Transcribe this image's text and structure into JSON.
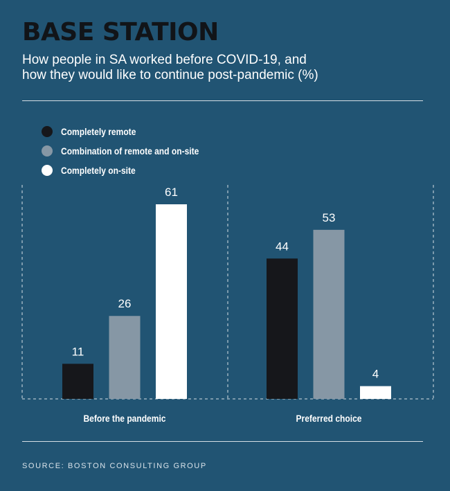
{
  "title": "BASE STATION",
  "subtitle_lines": [
    "How people in SA worked before COVID-19, and",
    "how they would like to continue post-pandemic (%)"
  ],
  "source": "SOURCE: BOSTON CONSULTING GROUP",
  "colors": {
    "background": "#215473",
    "completely_remote": "#16171b",
    "combination": "#8697a5",
    "completely_onsite": "#ffffff"
  },
  "chart_data": {
    "type": "bar",
    "title": "BASE STATION",
    "categories": [
      "Before the pandemic",
      "Preferred choice"
    ],
    "series": [
      {
        "name": "Completely remote",
        "color": "#16171b",
        "values": [
          11,
          44
        ]
      },
      {
        "name": "Combination of remote and on-site",
        "color": "#8697a5",
        "values": [
          26,
          53
        ]
      },
      {
        "name": "Completely on-site",
        "color": "#ffffff",
        "values": [
          61,
          4
        ]
      }
    ],
    "ylim": [
      0,
      61
    ],
    "grid": false,
    "legend_position": "top-left"
  }
}
